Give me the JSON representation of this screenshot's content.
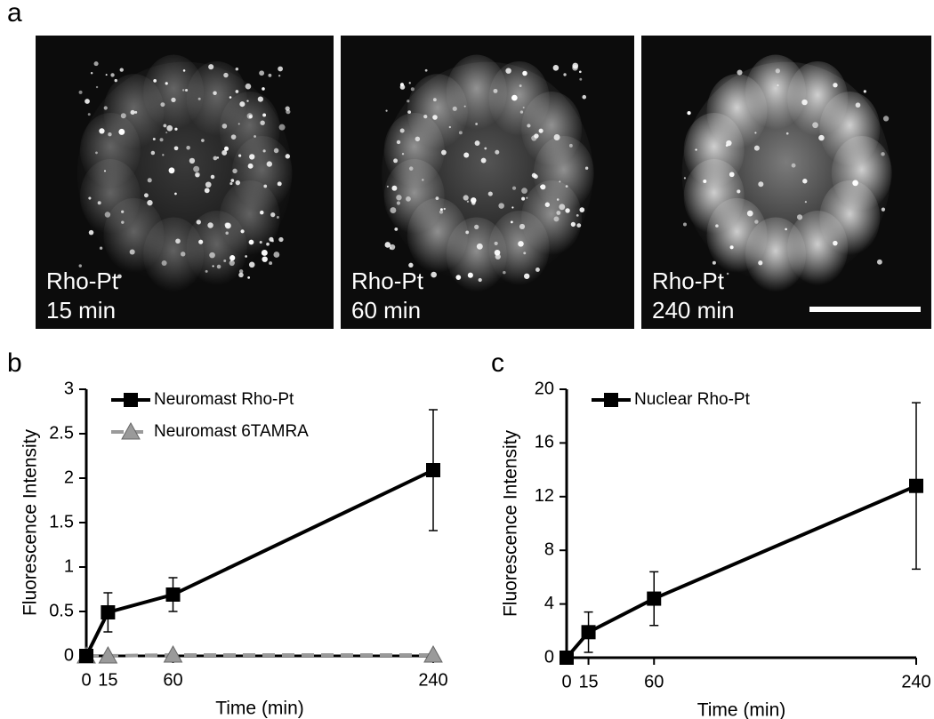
{
  "panel_labels": [
    "a",
    "b",
    "c"
  ],
  "images": [
    {
      "label": "Rho-Pt",
      "time": "15 min"
    },
    {
      "label": "Rho-Pt",
      "time": "60 min"
    },
    {
      "label": "Rho-Pt",
      "time": "240 min"
    }
  ],
  "chart_data": [
    {
      "type": "line",
      "y_label": "Fluorescence Intensity",
      "x_label": "Time (min)",
      "x": [
        0,
        15,
        60,
        240
      ],
      "xlim": [
        0,
        240
      ],
      "xticks": [
        0,
        15,
        60,
        240
      ],
      "ylim": [
        0,
        3
      ],
      "yticks": [
        0,
        0.5,
        1,
        1.5,
        2,
        2.5,
        3
      ],
      "legend": "upper left",
      "series": [
        {
          "name": "Neuromast Rho-Pt",
          "color": "#000000",
          "marker": "square",
          "line_style": "solid",
          "values": [
            0,
            0.49,
            0.69,
            2.09
          ],
          "errors": [
            0,
            0.22,
            0.19,
            0.68
          ]
        },
        {
          "name": "Neuromast 6TAMRA",
          "color": "#9a9a9a",
          "marker": "triangle",
          "line_style": "dashed",
          "values": [
            0,
            0,
            0.01,
            0.01
          ]
        }
      ]
    },
    {
      "type": "line",
      "y_label": "Fluorescence Intensity",
      "x_label": "Time (min)",
      "x": [
        0,
        15,
        60,
        240
      ],
      "xlim": [
        0,
        240
      ],
      "xticks": [
        0,
        15,
        60,
        240
      ],
      "ylim": [
        0,
        20
      ],
      "yticks": [
        0,
        4,
        8,
        12,
        16,
        20
      ],
      "legend": "upper left",
      "series": [
        {
          "name": "Nuclear Rho-Pt",
          "color": "#000000",
          "marker": "square",
          "line_style": "solid",
          "values": [
            0,
            1.9,
            4.4,
            12.8
          ],
          "errors": [
            0,
            1.5,
            2.0,
            6.2
          ]
        }
      ]
    }
  ]
}
